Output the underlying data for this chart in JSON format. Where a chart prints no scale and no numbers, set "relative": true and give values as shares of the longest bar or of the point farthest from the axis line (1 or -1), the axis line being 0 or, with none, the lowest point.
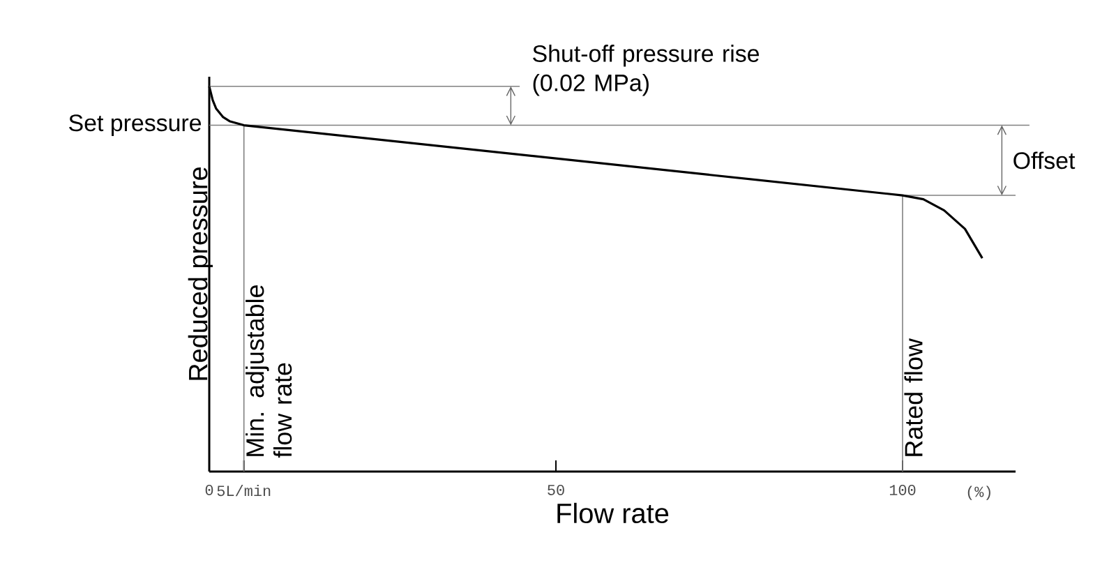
{
  "chart_data": {
    "type": "line",
    "relative": true,
    "xlabel": "Flow rate",
    "ylabel": "Reduced pressure",
    "x": [
      0,
      0.5,
      1,
      2,
      3,
      5,
      100,
      103,
      106,
      109,
      111.5
    ],
    "series": [
      {
        "color": "#000000",
        "values": [
          1.0,
          0.964,
          0.942,
          0.92,
          0.909,
          0.899,
          0.717,
          0.707,
          0.678,
          0.63,
          0.554
        ]
      }
    ],
    "xlim": [
      0,
      116.3
    ],
    "xticks": [
      0,
      {
        "value": 5,
        "label": "5L/min"
      },
      50,
      100
    ],
    "line_style": "solid",
    "marker": "none",
    "ref_lines": [
      {
        "axis": "y",
        "value": 1.0,
        "color": "#808080"
      },
      {
        "axis": "y",
        "value": 0.899,
        "label": "Set pressure",
        "color": "#808080"
      },
      {
        "axis": "y",
        "value": 0.717,
        "color": "#808080"
      },
      {
        "axis": "x",
        "value": 5,
        "label": "Min. adjustable flow rate",
        "color": "#808080"
      },
      {
        "axis": "x",
        "value": 100,
        "label": "Rated flow",
        "color": "#808080"
      }
    ],
    "annotations": [
      "Shut-off pressure rise (0.02 MPa)",
      "Offset",
      "(%)"
    ]
  }
}
